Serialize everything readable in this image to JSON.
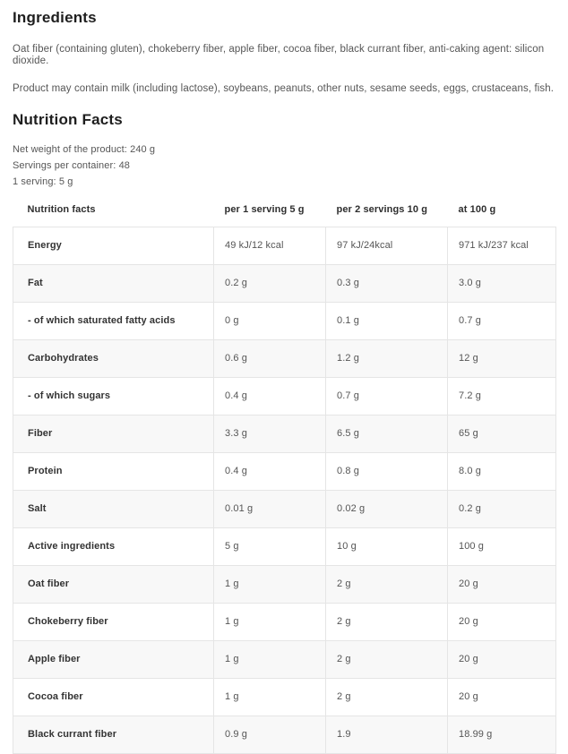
{
  "ingredients": {
    "heading": "Ingredients",
    "composition": "Oat fiber (containing gluten), chokeberry fiber, apple fiber, cocoa fiber, black currant fiber, anti-caking agent: silicon dioxide.",
    "allergen_notice": "Product may contain milk (including lactose), soybeans, peanuts, other nuts, sesame seeds, eggs, crustaceans, fish."
  },
  "nutrition": {
    "heading": "Nutrition Facts",
    "net_weight": "Net weight of the product: 240 g",
    "servings_per_container": "Servings per container: 48",
    "serving_size": "1 serving: 5 g",
    "table": {
      "columns": [
        "Nutrition facts",
        "per 1 serving 5 g",
        "per 2 servings 10 g",
        "at 100 g"
      ],
      "rows": [
        {
          "cells": [
            "Energy",
            "49 kJ/12 kcal",
            "97 kJ/24kcal",
            "971 kJ/237 kcal"
          ]
        },
        {
          "cells": [
            "Fat",
            "0.2 g",
            "0.3 g",
            "3.0 g"
          ]
        },
        {
          "cells": [
            "- of which saturated fatty acids",
            "0 g",
            "0.1 g",
            "0.7 g"
          ]
        },
        {
          "cells": [
            "Carbohydrates",
            "0.6 g",
            "1.2 g",
            "12 g"
          ]
        },
        {
          "cells": [
            "- of which sugars",
            "0.4 g",
            "0.7 g",
            "7.2 g"
          ]
        },
        {
          "cells": [
            "Fiber",
            "3.3 g",
            "6.5 g",
            "65 g"
          ]
        },
        {
          "cells": [
            "Protein",
            "0.4 g",
            "0.8 g",
            "8.0 g"
          ]
        },
        {
          "cells": [
            "Salt",
            "0.01 g",
            "0.02 g",
            "0.2 g"
          ]
        },
        {
          "cells": [
            "Active ingredients",
            "5 g",
            "10 g",
            "100 g"
          ]
        },
        {
          "cells": [
            "Oat fiber",
            "1 g",
            "2 g",
            "20 g"
          ]
        },
        {
          "cells": [
            "Chokeberry fiber",
            "1 g",
            "2 g",
            "20 g"
          ]
        },
        {
          "cells": [
            "Apple fiber",
            "1 g",
            "2 g",
            "20 g"
          ]
        },
        {
          "cells": [
            "Cocoa fiber",
            "1 g",
            "2 g",
            "20 g"
          ]
        },
        {
          "cells": [
            "Black currant fiber",
            "0.9 g",
            "1.9",
            "18.99 g"
          ]
        }
      ]
    }
  },
  "colors": {
    "heading_text": "#1e1e1e",
    "body_text": "#565656",
    "table_border": "#e5e5e5",
    "zebra_row_background": "#f8f8f8",
    "page_background": "#ffffff"
  }
}
